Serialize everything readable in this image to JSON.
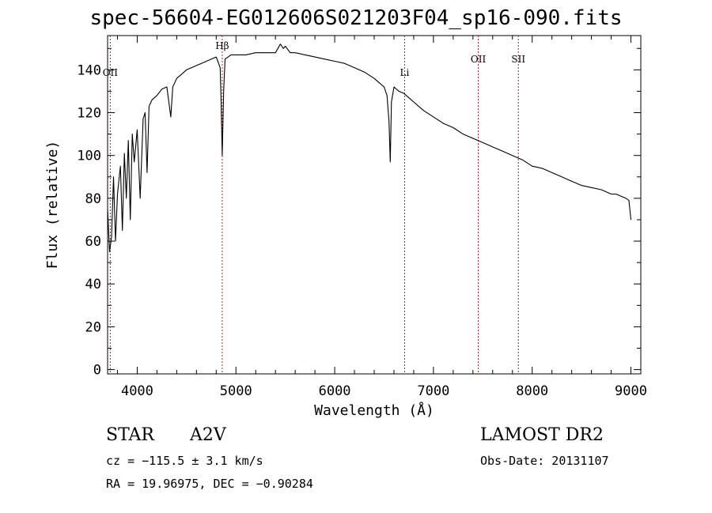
{
  "title": "spec-56604-EG012606S021203F04_sp16-090.fits",
  "info": {
    "class": "STAR",
    "subclass": "A2V",
    "survey": "LAMOST DR2",
    "cz": "cz = −115.5 ± 3.1 km/s",
    "obs_date": "Obs-Date: 20131107",
    "radec": "RA =  19.96975, DEC =  −0.90284"
  },
  "chart_data": {
    "type": "line",
    "xlabel": "Wavelength (Å)",
    "ylabel": "Flux (relative)",
    "xlim": [
      3700,
      9100
    ],
    "ylim": [
      -2,
      156
    ],
    "xticks": [
      4000,
      5000,
      6000,
      7000,
      8000,
      9000
    ],
    "yticks": [
      0,
      20,
      40,
      60,
      80,
      100,
      120,
      140
    ],
    "grid": false,
    "line_color": "#000000",
    "marker_color": "#b22222",
    "line_markers": [
      {
        "label": "OII",
        "x": 3727
      },
      {
        "label": "Hβ",
        "x": 4861
      },
      {
        "label": "Li",
        "x": 6708
      },
      {
        "label": "OII",
        "x": 7454
      },
      {
        "label": "SII",
        "x": 7860
      }
    ],
    "series": [
      {
        "x": [
          3700,
          3720,
          3740,
          3760,
          3780,
          3800,
          3830,
          3850,
          3870,
          3890,
          3910,
          3930,
          3950,
          3970,
          4000,
          4030,
          4060,
          4080,
          4100,
          4120,
          4150,
          4200,
          4250,
          4300,
          4340,
          4360,
          4400,
          4450,
          4500,
          4550,
          4600,
          4650,
          4700,
          4750,
          4800,
          4840,
          4850,
          4861,
          4875,
          4890,
          4950,
          5000,
          5100,
          5200,
          5300,
          5400,
          5450,
          5480,
          5500,
          5550,
          5600,
          5700,
          5800,
          5900,
          6000,
          6100,
          6200,
          6300,
          6400,
          6450,
          6500,
          6530,
          6550,
          6563,
          6575,
          6600,
          6650,
          6700,
          6750,
          6800,
          6900,
          7000,
          7100,
          7200,
          7300,
          7400,
          7500,
          7600,
          7700,
          7800,
          7900,
          8000,
          8100,
          8200,
          8300,
          8400,
          8500,
          8600,
          8700,
          8750,
          8800,
          8850,
          8900,
          8950,
          8980,
          9000
        ],
        "y": [
          75,
          55,
          62,
          90,
          60,
          82,
          95,
          65,
          101,
          80,
          107,
          70,
          110,
          97,
          112,
          80,
          117,
          120,
          92,
          123,
          126,
          128,
          131,
          132,
          118,
          132,
          136,
          138,
          140,
          141,
          142,
          143,
          144,
          145,
          146,
          141,
          125,
          100,
          130,
          145,
          147,
          147,
          147,
          148,
          148,
          148,
          152,
          150,
          151,
          148,
          148,
          147,
          146,
          145,
          144,
          143,
          141,
          139,
          136,
          134,
          132,
          128,
          116,
          97,
          125,
          132,
          130,
          129,
          127,
          125,
          121,
          118,
          115,
          113,
          110,
          108,
          106,
          104,
          102,
          100,
          98,
          95,
          94,
          92,
          90,
          88,
          86,
          85,
          84,
          83,
          82,
          82,
          81,
          80,
          79,
          70
        ]
      }
    ]
  }
}
